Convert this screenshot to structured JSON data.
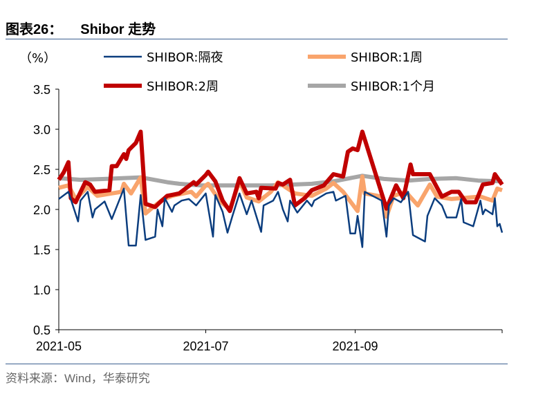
{
  "header": {
    "figure_label": "图表26：",
    "title": "Shibor 走势"
  },
  "source": "资料来源：Wind，华泰研究",
  "chart_data": {
    "type": "line",
    "ylabel": "（%）",
    "ylim": [
      0.5,
      3.5
    ],
    "yticks": [
      "0.5",
      "1.0",
      "1.5",
      "2.0",
      "2.5",
      "3.0",
      "3.5"
    ],
    "xlim": [
      "2021-05-01",
      "2021-11-01"
    ],
    "xticks": [
      {
        "date": "2021-05-01",
        "label": "2021-05"
      },
      {
        "date": "2021-07-01",
        "label": "2021-07"
      },
      {
        "date": "2021-09-01",
        "label": "2021-09"
      }
    ],
    "grid": false,
    "legend": "top",
    "series": [
      {
        "name": "SHIBOR:隔夜",
        "color": "#0b3d7e",
        "points": [
          [
            "2021-05-01",
            2.13
          ],
          [
            "2021-05-05",
            2.22
          ],
          [
            "2021-05-09",
            1.85
          ],
          [
            "2021-05-10",
            2.11
          ],
          [
            "2021-05-13",
            2.22
          ],
          [
            "2021-05-15",
            1.9
          ],
          [
            "2021-05-16",
            2.0
          ],
          [
            "2021-05-20",
            2.1
          ],
          [
            "2021-05-23",
            1.88
          ],
          [
            "2021-05-28",
            2.26
          ],
          [
            "2021-05-30",
            1.55
          ],
          [
            "2021-06-02",
            1.55
          ],
          [
            "2021-06-04",
            2.18
          ],
          [
            "2021-06-06",
            1.62
          ],
          [
            "2021-06-10",
            1.66
          ],
          [
            "2021-06-11",
            2.0
          ],
          [
            "2021-06-13",
            1.79
          ],
          [
            "2021-06-14",
            2.14
          ],
          [
            "2021-06-17",
            1.97
          ],
          [
            "2021-06-18",
            2.05
          ],
          [
            "2021-06-21",
            2.11
          ],
          [
            "2021-06-24",
            2.13
          ],
          [
            "2021-06-27",
            2.05
          ],
          [
            "2021-07-01",
            2.2
          ],
          [
            "2021-07-04",
            1.66
          ],
          [
            "2021-07-05",
            2.18
          ],
          [
            "2021-07-08",
            1.97
          ],
          [
            "2021-07-10",
            1.71
          ],
          [
            "2021-07-12",
            1.91
          ],
          [
            "2021-07-15",
            2.2
          ],
          [
            "2021-07-18",
            1.94
          ],
          [
            "2021-07-20",
            2.11
          ],
          [
            "2021-07-24",
            1.72
          ],
          [
            "2021-07-25",
            2.05
          ],
          [
            "2021-07-29",
            2.11
          ],
          [
            "2021-07-31",
            2.22
          ],
          [
            "2021-08-02",
            2.0
          ],
          [
            "2021-08-04",
            1.85
          ],
          [
            "2021-08-05",
            2.11
          ],
          [
            "2021-08-08",
            1.96
          ],
          [
            "2021-08-12",
            2.11
          ],
          [
            "2021-08-14",
            2.04
          ],
          [
            "2021-08-15",
            2.11
          ],
          [
            "2021-08-20",
            2.2
          ],
          [
            "2021-08-23",
            2.22
          ],
          [
            "2021-08-24",
            2.11
          ],
          [
            "2021-08-28",
            2.17
          ],
          [
            "2021-08-30",
            1.7
          ],
          [
            "2021-09-01",
            1.7
          ],
          [
            "2021-09-02",
            1.92
          ],
          [
            "2021-09-04",
            1.53
          ],
          [
            "2021-09-05",
            2.22
          ],
          [
            "2021-09-12",
            2.11
          ],
          [
            "2021-09-14",
            1.66
          ],
          [
            "2021-09-15",
            2.05
          ],
          [
            "2021-09-17",
            2.14
          ],
          [
            "2021-09-20",
            2.09
          ],
          [
            "2021-09-23",
            2.22
          ],
          [
            "2021-09-25",
            1.68
          ],
          [
            "2021-09-30",
            1.6
          ],
          [
            "2021-10-01",
            1.92
          ],
          [
            "2021-10-04",
            2.14
          ],
          [
            "2021-10-07",
            2.05
          ],
          [
            "2021-10-09",
            1.9
          ],
          [
            "2021-10-13",
            1.9
          ],
          [
            "2021-10-15",
            2.13
          ],
          [
            "2021-10-16",
            1.84
          ],
          [
            "2021-10-20",
            1.79
          ],
          [
            "2021-10-23",
            2.11
          ],
          [
            "2021-10-24",
            1.94
          ],
          [
            "2021-10-25",
            2.0
          ],
          [
            "2021-10-28",
            1.94
          ],
          [
            "2021-10-29",
            2.14
          ],
          [
            "2021-10-30",
            1.79
          ],
          [
            "2021-10-31",
            1.82
          ],
          [
            "2021-11-01",
            1.71
          ]
        ]
      },
      {
        "name": "SHIBOR:1周",
        "color": "#f9a46c",
        "points": [
          [
            "2021-05-01",
            2.27
          ],
          [
            "2021-05-05",
            2.3
          ],
          [
            "2021-05-08",
            2.13
          ],
          [
            "2021-05-13",
            2.28
          ],
          [
            "2021-05-17",
            2.17
          ],
          [
            "2021-05-23",
            2.2
          ],
          [
            "2021-05-27",
            2.22
          ],
          [
            "2021-05-28",
            2.32
          ],
          [
            "2021-05-31",
            2.2
          ],
          [
            "2021-06-04",
            2.4
          ],
          [
            "2021-06-06",
            1.95
          ],
          [
            "2021-06-10",
            2.05
          ],
          [
            "2021-06-13",
            2.12
          ],
          [
            "2021-06-17",
            2.17
          ],
          [
            "2021-06-25",
            2.22
          ],
          [
            "2021-06-27",
            2.16
          ],
          [
            "2021-07-01",
            2.3
          ],
          [
            "2021-07-02",
            2.32
          ],
          [
            "2021-07-07",
            2.1
          ],
          [
            "2021-07-11",
            2.0
          ],
          [
            "2021-07-15",
            2.35
          ],
          [
            "2021-07-18",
            2.15
          ],
          [
            "2021-07-23",
            2.1
          ],
          [
            "2021-07-28",
            2.22
          ],
          [
            "2021-07-31",
            2.34
          ],
          [
            "2021-08-07",
            2.2
          ],
          [
            "2021-08-14",
            2.17
          ],
          [
            "2021-08-20",
            2.26
          ],
          [
            "2021-08-23",
            2.33
          ],
          [
            "2021-08-27",
            2.22
          ],
          [
            "2021-09-02",
            1.98
          ],
          [
            "2021-09-04",
            2.41
          ],
          [
            "2021-09-05",
            2.2
          ],
          [
            "2021-09-12",
            2.16
          ],
          [
            "2021-09-14",
            1.91
          ],
          [
            "2021-09-17",
            2.17
          ],
          [
            "2021-09-22",
            2.22
          ],
          [
            "2021-09-27",
            2.05
          ],
          [
            "2021-10-02",
            2.31
          ],
          [
            "2021-10-05",
            2.16
          ],
          [
            "2021-10-11",
            2.13
          ],
          [
            "2021-10-23",
            2.16
          ],
          [
            "2021-10-28",
            2.11
          ],
          [
            "2021-10-30",
            2.26
          ],
          [
            "2021-11-01",
            2.24
          ]
        ]
      },
      {
        "name": "SHIBOR:2周",
        "color": "#c00000",
        "points": [
          [
            "2021-05-01",
            2.37
          ],
          [
            "2021-05-03",
            2.46
          ],
          [
            "2021-05-05",
            2.59
          ],
          [
            "2021-05-06",
            2.14
          ],
          [
            "2021-05-08",
            2.09
          ],
          [
            "2021-05-12",
            2.34
          ],
          [
            "2021-05-14",
            2.31
          ],
          [
            "2021-05-16",
            2.22
          ],
          [
            "2021-05-22",
            2.24
          ],
          [
            "2021-05-23",
            2.54
          ],
          [
            "2021-05-25",
            2.54
          ],
          [
            "2021-05-28",
            2.69
          ],
          [
            "2021-05-29",
            2.63
          ],
          [
            "2021-05-30",
            2.74
          ],
          [
            "2021-06-02",
            2.83
          ],
          [
            "2021-06-04",
            2.97
          ],
          [
            "2021-06-06",
            2.07
          ],
          [
            "2021-06-10",
            2.03
          ],
          [
            "2021-06-12",
            2.09
          ],
          [
            "2021-06-15",
            2.17
          ],
          [
            "2021-06-20",
            2.2
          ],
          [
            "2021-06-26",
            2.34
          ],
          [
            "2021-06-27",
            2.31
          ],
          [
            "2021-07-01",
            2.43
          ],
          [
            "2021-07-02",
            2.47
          ],
          [
            "2021-07-05",
            2.35
          ],
          [
            "2021-07-08",
            2.11
          ],
          [
            "2021-07-11",
            1.98
          ],
          [
            "2021-07-15",
            2.39
          ],
          [
            "2021-07-18",
            2.2
          ],
          [
            "2021-07-22",
            2.22
          ],
          [
            "2021-07-23",
            2.14
          ],
          [
            "2021-07-24",
            2.27
          ],
          [
            "2021-07-30",
            2.26
          ],
          [
            "2021-07-31",
            2.33
          ],
          [
            "2021-08-02",
            2.31
          ],
          [
            "2021-08-05",
            2.37
          ],
          [
            "2021-08-07",
            2.05
          ],
          [
            "2021-08-11",
            2.14
          ],
          [
            "2021-08-14",
            2.24
          ],
          [
            "2021-08-19",
            2.3
          ],
          [
            "2021-08-23",
            2.44
          ],
          [
            "2021-08-27",
            2.41
          ],
          [
            "2021-08-29",
            2.72
          ],
          [
            "2021-08-31",
            2.76
          ],
          [
            "2021-09-02",
            2.74
          ],
          [
            "2021-09-04",
            2.97
          ],
          [
            "2021-09-14",
            2.01
          ],
          [
            "2021-09-18",
            2.3
          ],
          [
            "2021-09-21",
            2.14
          ],
          [
            "2021-09-24",
            2.56
          ],
          [
            "2021-09-25",
            2.44
          ],
          [
            "2021-09-30",
            2.44
          ],
          [
            "2021-10-02",
            2.44
          ],
          [
            "2021-10-07",
            2.16
          ],
          [
            "2021-10-11",
            2.22
          ],
          [
            "2021-10-14",
            2.22
          ],
          [
            "2021-10-17",
            2.09
          ],
          [
            "2021-10-21",
            2.09
          ],
          [
            "2021-10-24",
            2.31
          ],
          [
            "2021-10-28",
            2.33
          ],
          [
            "2021-10-29",
            2.44
          ],
          [
            "2021-11-01",
            2.31
          ]
        ]
      },
      {
        "name": "SHIBOR:1个月",
        "color": "#a6a6a6",
        "points": [
          [
            "2021-05-01",
            2.39
          ],
          [
            "2021-05-10",
            2.37
          ],
          [
            "2021-05-20",
            2.38
          ],
          [
            "2021-06-04",
            2.4
          ],
          [
            "2021-06-15",
            2.34
          ],
          [
            "2021-06-20",
            2.32
          ],
          [
            "2021-06-29",
            2.3
          ],
          [
            "2021-07-10",
            2.3
          ],
          [
            "2021-07-28",
            2.3
          ],
          [
            "2021-08-14",
            2.32
          ],
          [
            "2021-08-23",
            2.35
          ],
          [
            "2021-09-04",
            2.42
          ],
          [
            "2021-09-13",
            2.38
          ],
          [
            "2021-09-23",
            2.36
          ],
          [
            "2021-10-02",
            2.38
          ],
          [
            "2021-10-13",
            2.39
          ],
          [
            "2021-10-22",
            2.36
          ],
          [
            "2021-11-01",
            2.35
          ]
        ]
      }
    ]
  }
}
